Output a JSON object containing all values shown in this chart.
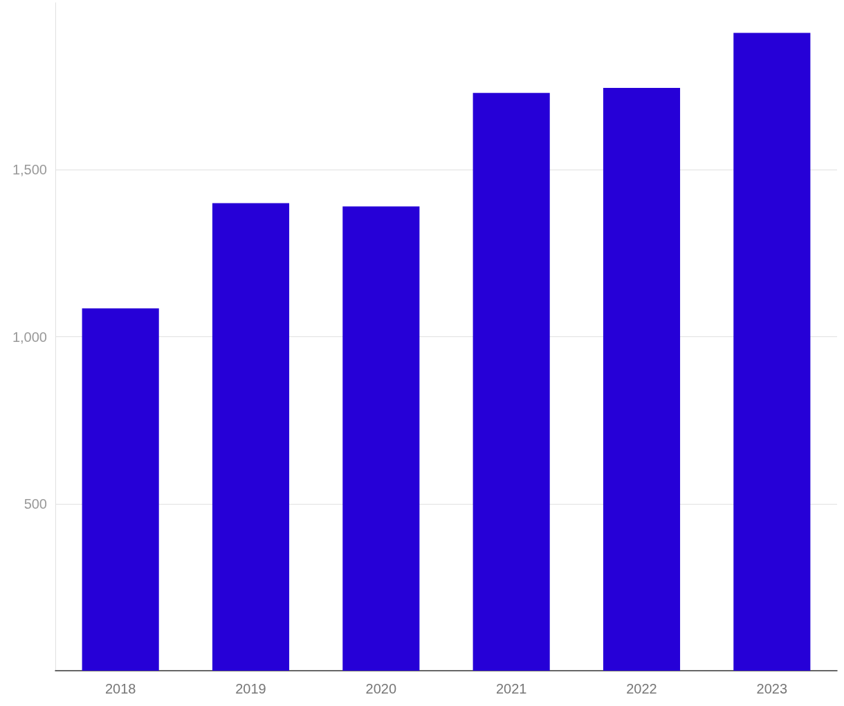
{
  "chart_data": {
    "type": "bar",
    "categories": [
      "2018",
      "2019",
      "2020",
      "2021",
      "2022",
      "2023"
    ],
    "values": [
      1085,
      1400,
      1390,
      1730,
      1745,
      1910
    ],
    "color": "#2600d7",
    "ylim": [
      0,
      2000
    ],
    "yticks": [
      {
        "value": 500,
        "label": "500"
      },
      {
        "value": 1000,
        "label": "1,000"
      },
      {
        "value": 1500,
        "label": "1,500"
      }
    ],
    "grid": "y"
  }
}
